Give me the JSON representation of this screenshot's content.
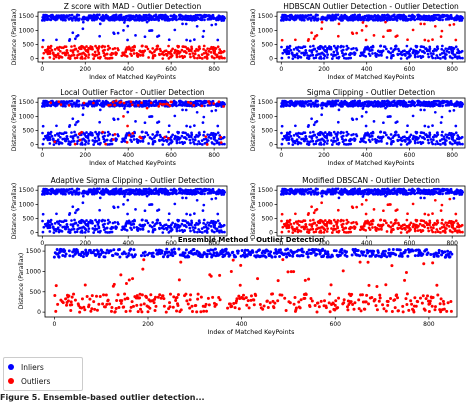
{
  "chart_data": [
    {
      "type": "scatter",
      "title": "Z score with MAD - Outlier Detection",
      "xlabel": "Index of Matched KeyPoints",
      "ylabel": "Distance (Parallax)",
      "xlim": [
        -20,
        860
      ],
      "ylim": [
        -120,
        1650
      ],
      "xticks": [
        0,
        200,
        400,
        600,
        800
      ],
      "yticks": [
        0,
        500,
        1000,
        1500
      ],
      "n_points": 850,
      "series": [
        {
          "name": "Inliers",
          "color": "#0000ff",
          "rule": "distance >= 600",
          "clusters": [
            [
              1350,
              1550,
              0.55
            ],
            [
              600,
              1300,
              0.04
            ]
          ]
        },
        {
          "name": "Outliers",
          "color": "#ff0000",
          "rule": "distance < 600",
          "clusters": [
            [
              0,
              450,
              0.41
            ]
          ]
        }
      ]
    },
    {
      "type": "scatter",
      "title": "HDBSCAN Outlier Detection - Outlier Detection",
      "xlabel": "Index of Matched KeyPoints",
      "ylabel": "Distance (Parallax)",
      "xlim": [
        -20,
        860
      ],
      "ylim": [
        -120,
        1650
      ],
      "xticks": [
        0,
        200,
        400,
        600,
        800
      ],
      "yticks": [
        0,
        500,
        1000,
        1500
      ],
      "n_points": 850,
      "series": [
        {
          "name": "Inliers",
          "color": "#0000ff",
          "rule": "mostly",
          "clusters": [
            [
              1350,
              1550,
              0.55
            ],
            [
              0,
              450,
              0.37
            ]
          ]
        },
        {
          "name": "Outliers",
          "color": "#ff0000",
          "rule": "mid-range and scattered",
          "clusters": [
            [
              500,
              1350,
              0.08
            ]
          ]
        }
      ]
    },
    {
      "type": "scatter",
      "title": "Local Outlier Factor - Outlier Detection",
      "xlabel": "Index of Matched KeyPoints",
      "ylabel": "Distance (Parallax)",
      "xlim": [
        -20,
        860
      ],
      "ylim": [
        -120,
        1650
      ],
      "xticks": [
        0,
        200,
        400,
        600,
        800
      ],
      "yticks": [
        0,
        500,
        1000,
        1500
      ],
      "n_points": 850,
      "series": [
        {
          "name": "Inliers",
          "color": "#0000ff",
          "clusters": [
            [
              1350,
              1550,
              0.52
            ],
            [
              0,
              450,
              0.35
            ],
            [
              600,
              1300,
              0.04
            ]
          ]
        },
        {
          "name": "Outliers",
          "color": "#ff0000",
          "rule": "scattered in both bands",
          "clusters": [
            [
              1350,
              1550,
              0.04
            ],
            [
              0,
              450,
              0.05
            ]
          ]
        }
      ]
    },
    {
      "type": "scatter",
      "title": "Sigma Clipping - Outlier Detection",
      "xlabel": "Index of Matched KeyPoints",
      "ylabel": "Distance (Parallax)",
      "xlim": [
        -20,
        860
      ],
      "ylim": [
        -120,
        1650
      ],
      "xticks": [
        0,
        200,
        400,
        600,
        800
      ],
      "yticks": [
        0,
        500,
        1000,
        1500
      ],
      "n_points": 850,
      "series": [
        {
          "name": "Inliers",
          "color": "#0000ff",
          "rule": "all points",
          "clusters": [
            [
              1350,
              1550,
              0.55
            ],
            [
              0,
              450,
              0.41
            ],
            [
              600,
              1300,
              0.04
            ]
          ]
        }
      ]
    },
    {
      "type": "scatter",
      "title": "Adaptive Sigma Clipping - Outlier Detection",
      "xlabel": "Index of Matched KeyPoints",
      "ylabel": "Distance (Parallax)",
      "xlim": [
        -20,
        860
      ],
      "ylim": [
        -120,
        1650
      ],
      "xticks": [
        0,
        200,
        400,
        600,
        800
      ],
      "yticks": [
        0,
        500,
        1000,
        1500
      ],
      "n_points": 850,
      "series": [
        {
          "name": "Inliers",
          "color": "#0000ff",
          "rule": "all points",
          "clusters": [
            [
              1350,
              1550,
              0.55
            ],
            [
              0,
              450,
              0.41
            ],
            [
              600,
              1300,
              0.04
            ]
          ]
        }
      ]
    },
    {
      "type": "scatter",
      "title": "Modified DBSCAN - Outlier Detection",
      "xlabel": "Index of Matched KeyPoints",
      "ylabel": "Distance (Parallax)",
      "xlim": [
        -20,
        860
      ],
      "ylim": [
        -120,
        1650
      ],
      "xticks": [
        0,
        200,
        400,
        600,
        800
      ],
      "yticks": [
        0,
        500,
        1000,
        1500
      ],
      "n_points": 850,
      "series": [
        {
          "name": "Inliers",
          "color": "#0000ff",
          "rule": "distance >= 1200",
          "clusters": [
            [
              1350,
              1550,
              0.55
            ]
          ]
        },
        {
          "name": "Outliers",
          "color": "#ff0000",
          "rule": "distance < 1200",
          "clusters": [
            [
              0,
              450,
              0.41
            ],
            [
              600,
              1200,
              0.04
            ]
          ]
        }
      ]
    },
    {
      "type": "scatter",
      "title": "Ensemble Method - Outlier Detection",
      "xlabel": "Index of Matched KeyPoints",
      "ylabel": "Distance (Parallax)",
      "xlim": [
        -20,
        860
      ],
      "ylim": [
        -120,
        1650
      ],
      "xticks": [
        0,
        200,
        400,
        600,
        800
      ],
      "yticks": [
        0,
        500,
        1000,
        1500
      ],
      "n_points": 850,
      "series": [
        {
          "name": "Inliers",
          "color": "#0000ff",
          "rule": "distance >= 1300",
          "clusters": [
            [
              1350,
              1550,
              0.55
            ]
          ]
        },
        {
          "name": "Outliers",
          "color": "#ff0000",
          "rule": "distance < 1300",
          "clusters": [
            [
              0,
              450,
              0.41
            ],
            [
              600,
              1300,
              0.04
            ]
          ]
        }
      ]
    }
  ],
  "legend": {
    "items": [
      {
        "label": "Inliers",
        "color": "#0000ff"
      },
      {
        "label": "Outliers",
        "color": "#ff0000"
      }
    ]
  },
  "caption": "Figure 5. Ensemble-based outlier detection..."
}
